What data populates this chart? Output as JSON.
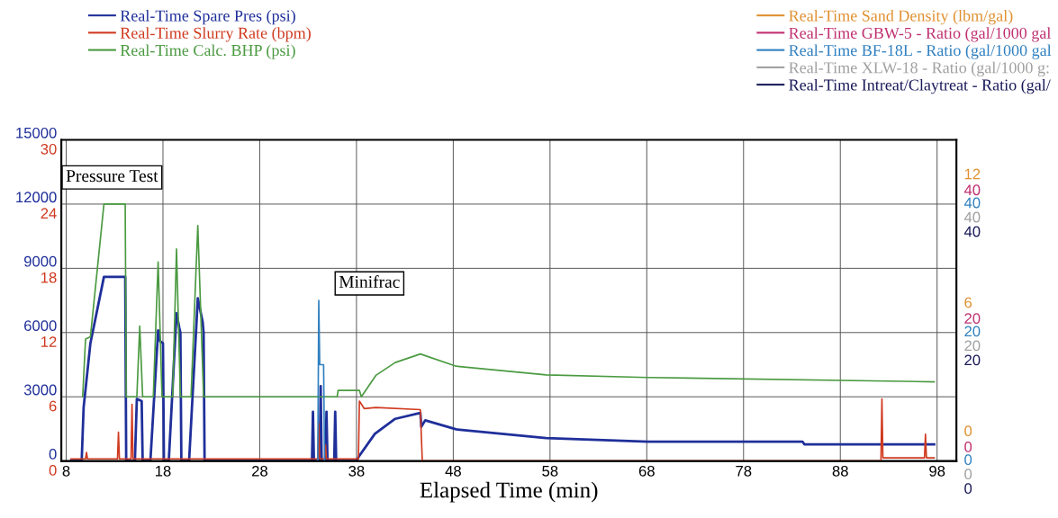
{
  "chart_data": {
    "type": "line",
    "xlabel": "Elapsed Time (min)",
    "xlim": [
      7.5,
      100
    ],
    "xticks": [
      8,
      18,
      28,
      38,
      48,
      58,
      68,
      78,
      88,
      98
    ],
    "ylim": [
      0,
      15000
    ],
    "yticks": [
      0,
      3000,
      6000,
      9000,
      12000,
      15000
    ],
    "y2lim": [
      0,
      30
    ],
    "y2ticks": [
      0,
      6,
      12,
      18,
      24,
      30
    ],
    "y3lim": [
      0,
      50
    ],
    "y3ticks": [
      0,
      20,
      40
    ],
    "grid": true,
    "legend": "top",
    "annotations": [
      "Pressure Test",
      "Minifrac",
      "0",
      "6",
      "12",
      "0",
      "20",
      "40",
      "0",
      "20",
      "40",
      "0",
      "20",
      "40"
    ],
    "series": [
      {
        "name": "Real-Time Spare Pres (psi)",
        "color": "#1f2f9a",
        "x": [
          8.5,
          9.6,
          9.8,
          10.5,
          11.9,
          14.1,
          14.2,
          15.1,
          15.3,
          15.8,
          15.9,
          16.7,
          17.5,
          17.7,
          18.0,
          18.1,
          18.6,
          19.4,
          19.7,
          19.8,
          19.9,
          20.7,
          21.6,
          22.1,
          22.2,
          22.3,
          33.4,
          33.5,
          33.6,
          34.2,
          34.3,
          34.4,
          34.8,
          34.9,
          35.0,
          35.7,
          35.8,
          35.9,
          38.0,
          38.3,
          39.9,
          42.0,
          44.6,
          44.7,
          45.1,
          48.3,
          57.6,
          68.1,
          84.1,
          84.3,
          97.7
        ],
        "values": [
          0,
          0,
          2500,
          5500,
          8600,
          8600,
          0,
          0,
          2900,
          2800,
          0,
          0,
          6100,
          5600,
          5500,
          0,
          0,
          6900,
          6200,
          6000,
          0,
          0,
          7600,
          6500,
          6000,
          0,
          0,
          2300,
          0,
          0,
          3500,
          0,
          0,
          2300,
          0,
          0,
          2300,
          0,
          0,
          250,
          1270,
          1970,
          2250,
          1600,
          1900,
          1480,
          1070,
          900,
          900,
          780,
          780
        ]
      },
      {
        "name": "Real-Time Slurry Rate (bpm)",
        "color": "#d03a20",
        "axis": "y2",
        "x": [
          8.5,
          10.0,
          10.1,
          10.2,
          13.3,
          13.4,
          13.5,
          14.7,
          14.8,
          14.9,
          34.0,
          34.1,
          34.2,
          34.7,
          34.8,
          34.9,
          38.2,
          38.3,
          38.8,
          40.0,
          44.6,
          44.8,
          92.2,
          92.3,
          92.4,
          96.7,
          96.8,
          96.9,
          97.7
        ],
        "values": [
          0.2,
          0.2,
          0.8,
          0.2,
          0.2,
          2.7,
          0.2,
          0.2,
          5.3,
          0.2,
          0.2,
          3.5,
          0.2,
          0.2,
          1.5,
          0.2,
          0.2,
          5.6,
          4.9,
          5.0,
          4.8,
          0,
          0,
          5.8,
          0.3,
          0.3,
          2.5,
          0.3,
          0.3
        ]
      },
      {
        "name": "Real-Time Calc. BHP (psi)",
        "color": "#4a9a40",
        "x": [
          9.7,
          10.0,
          10.5,
          11.9,
          14.1,
          14.2,
          15.3,
          15.6,
          15.9,
          17.0,
          17.5,
          17.9,
          19.0,
          19.4,
          19.8,
          20.9,
          21.6,
          22.2,
          36.0,
          36.1,
          38.3,
          38.5,
          40.0,
          42.0,
          44.6,
          48.3,
          57.6,
          68.1,
          97.7
        ],
        "values": [
          3000,
          5700,
          5800,
          12000,
          12000,
          3000,
          3000,
          6300,
          3000,
          3000,
          9300,
          3000,
          3000,
          9900,
          3000,
          3000,
          11000,
          3000,
          3000,
          3300,
          3300,
          3000,
          4000,
          4600,
          5000,
          4430,
          4020,
          3900,
          3700
        ]
      },
      {
        "name": "Real-Time Sand Density (lbm/gal)",
        "color": "#e09030"
      },
      {
        "name": "Real-Time GBW-5 - Ratio (gal/1000 gal",
        "color": "#c03070",
        "axis": "y3"
      },
      {
        "name": "Real-Time BF-18L - Ratio (gal/1000 gal",
        "color": "#3080c0",
        "axis": "y3",
        "x": [
          34.0,
          34.1,
          34.2,
          34.3,
          34.6,
          34.7
        ],
        "values": [
          0,
          25,
          15,
          15,
          15,
          0
        ]
      },
      {
        "name": "Real-Time XLW-18 - Ratio (gal/1000 g:",
        "color": "#a0a0a0",
        "axis": "y3"
      },
      {
        "name": "Real-Time Intreat/Claytreat - Ratio (gal/",
        "color": "#1a1a5a",
        "axis": "y3"
      }
    ]
  }
}
